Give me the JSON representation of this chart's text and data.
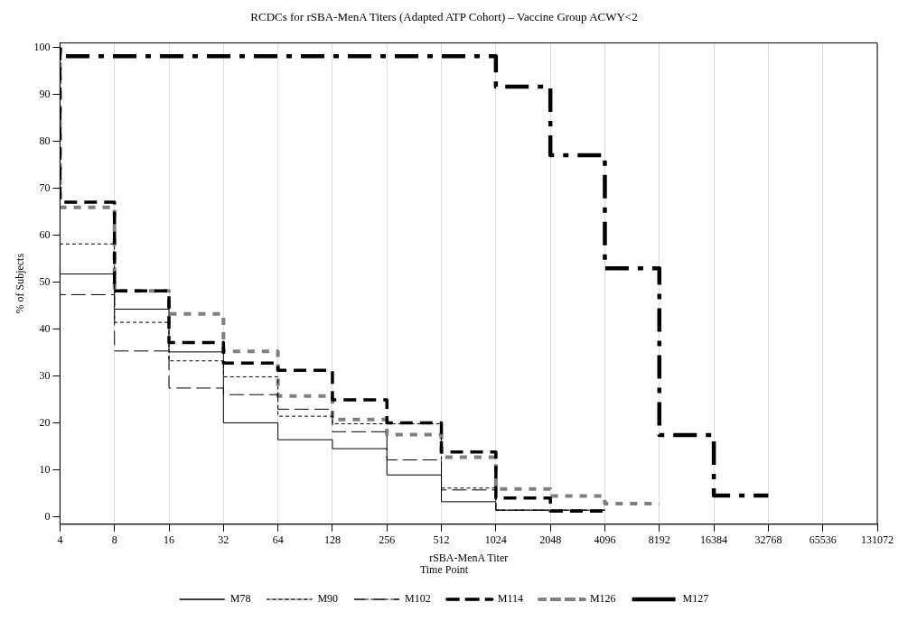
{
  "chart_data": {
    "type": "step",
    "title": "RCDCs for rSBA-MenA Titers (Adapted ATP Cohort) – Vaccine Group ACWY<2",
    "xlabel": "rSBA-MenA Titer",
    "ylabel": "% of Subjects",
    "legend_title": "Time Point",
    "log": "x",
    "grid": "x",
    "legend": "bottom",
    "xlim": [
      4,
      131072
    ],
    "xticks": [
      4,
      8,
      16,
      32,
      64,
      128,
      256,
      512,
      1024,
      2048,
      4096,
      8192,
      16384,
      32768,
      65536,
      131072
    ],
    "ylim": [
      -1.5,
      101
    ],
    "yticks": [
      0,
      10,
      20,
      30,
      40,
      50,
      60,
      70,
      80,
      90,
      100
    ],
    "series": [
      {
        "name": "M78",
        "color": "#000000",
        "line_style": "solid",
        "x": [
          4,
          4,
          8,
          16,
          32,
          64,
          128,
          256,
          512,
          1024,
          2048,
          4096
        ],
        "values": [
          100,
          51.8,
          44.3,
          35.2,
          20.1,
          16.5,
          14.6,
          9.0,
          3.3,
          1.5,
          1.5,
          1.5
        ]
      },
      {
        "name": "M90",
        "color": "#000000",
        "line_style": "dotted",
        "x": [
          4,
          4,
          8,
          16,
          32,
          64,
          128,
          256,
          512,
          1024,
          2048,
          4096
        ],
        "values": [
          100,
          58.2,
          41.5,
          33.3,
          29.9,
          21.5,
          19.9,
          19.9,
          6.2,
          1.5,
          1.5,
          1.5
        ]
      },
      {
        "name": "M102",
        "color": "#000000",
        "line_style": "dashed",
        "x": [
          4,
          4,
          8,
          16,
          32,
          64,
          128,
          256,
          512,
          1024,
          2048,
          4096
        ],
        "values": [
          100,
          47.4,
          35.4,
          27.5,
          26.1,
          23.0,
          18.2,
          12.2,
          5.8,
          1.5,
          1.5,
          1.5
        ]
      },
      {
        "name": "M114",
        "color": "#000000",
        "line_style": "dashed",
        "x": [
          4,
          4,
          8,
          16,
          32,
          64,
          128,
          256,
          512,
          1024,
          2048,
          4096
        ],
        "values": [
          100,
          67.1,
          48.2,
          37.2,
          32.8,
          31.3,
          25.0,
          20.1,
          13.9,
          4.1,
          1.3,
          1.3
        ]
      },
      {
        "name": "M126",
        "color": "#808080",
        "line_style": "dashed",
        "x": [
          4,
          4,
          8,
          16,
          32,
          64,
          128,
          256,
          512,
          1024,
          2048,
          4096,
          8192
        ],
        "values": [
          100,
          66.0,
          48.2,
          43.3,
          35.3,
          25.8,
          20.8,
          17.6,
          12.8,
          6.0,
          4.5,
          2.9,
          2.9
        ]
      },
      {
        "name": "M127",
        "color": "#000000",
        "line_style": "dashed",
        "x": [
          4,
          4,
          1024,
          2048,
          4096,
          8192,
          16384,
          32768
        ],
        "values": [
          100,
          98.2,
          91.7,
          77.1,
          53.0,
          17.5,
          4.6,
          4.6
        ]
      }
    ]
  }
}
